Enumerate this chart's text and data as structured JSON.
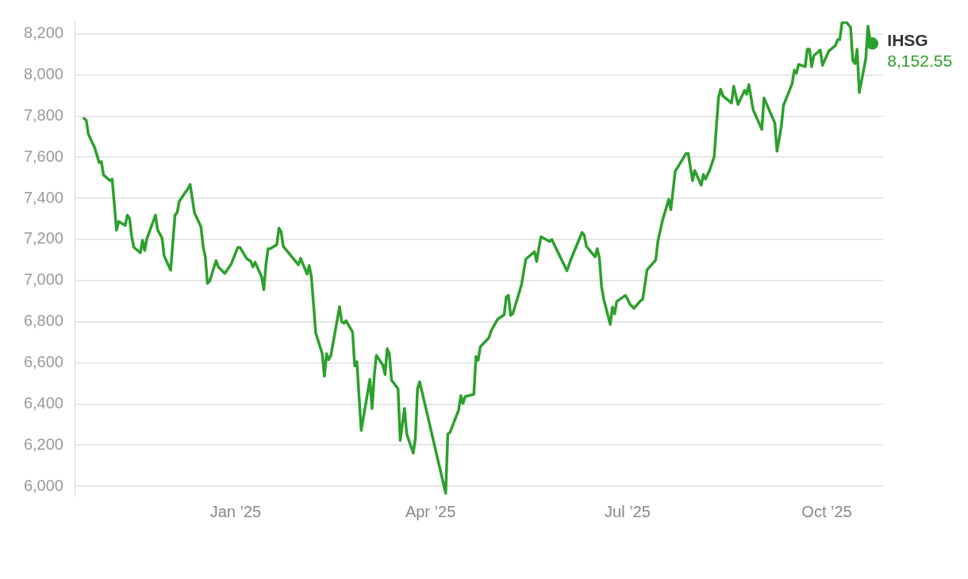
{
  "chart_data": {
    "type": "line",
    "xlim": [
      "2024-10-19",
      "2025-10-27"
    ],
    "ylim": [
      5950,
      8260
    ],
    "xticks": [
      {
        "value": "2025-01-01",
        "label": "Jan ’25"
      },
      {
        "value": "2025-04-01",
        "label": "Apr ’25"
      },
      {
        "value": "2025-07-01",
        "label": "Jul ’25"
      },
      {
        "value": "2025-10-01",
        "label": "Oct ’25"
      }
    ],
    "yticks": [
      {
        "value": 6000,
        "label": "6,000"
      },
      {
        "value": 6200,
        "label": "6,200"
      },
      {
        "value": 6400,
        "label": "6,400"
      },
      {
        "value": 6600,
        "label": "6,600"
      },
      {
        "value": 6800,
        "label": "6,800"
      },
      {
        "value": 7000,
        "label": "7,000"
      },
      {
        "value": 7200,
        "label": "7,200"
      },
      {
        "value": 7400,
        "label": "7,400"
      },
      {
        "value": 7600,
        "label": "7,600"
      },
      {
        "value": 7800,
        "label": "7,800"
      },
      {
        "value": 8000,
        "label": "8,000"
      },
      {
        "value": 8200,
        "label": "8,200"
      }
    ],
    "grid": "y",
    "legend": false,
    "x": [
      "2024-10-23",
      "2024-10-24",
      "2024-10-25",
      "2024-10-28",
      "2024-10-30",
      "2024-10-31",
      "2024-11-01",
      "2024-11-04",
      "2024-11-05",
      "2024-11-07",
      "2024-11-08",
      "2024-11-11",
      "2024-11-12",
      "2024-11-13",
      "2024-11-14",
      "2024-11-15",
      "2024-11-18",
      "2024-11-19",
      "2024-11-20",
      "2024-11-21",
      "2024-11-25",
      "2024-11-26",
      "2024-11-28",
      "2024-11-29",
      "2024-12-02",
      "2024-12-04",
      "2024-12-05",
      "2024-12-06",
      "2024-12-10",
      "2024-12-11",
      "2024-12-13",
      "2024-12-16",
      "2024-12-17",
      "2024-12-18",
      "2024-12-19",
      "2024-12-20",
      "2024-12-23",
      "2024-12-24",
      "2024-12-27",
      "2024-12-30",
      "2025-01-02",
      "2025-01-03",
      "2025-01-06",
      "2025-01-08",
      "2025-01-09",
      "2025-01-10",
      "2025-01-13",
      "2025-01-14",
      "2025-01-15",
      "2025-01-16",
      "2025-01-17",
      "2025-01-20",
      "2025-01-21",
      "2025-01-22",
      "2025-01-23",
      "2025-01-30",
      "2025-01-31",
      "2025-02-03",
      "2025-02-04",
      "2025-02-05",
      "2025-02-07",
      "2025-02-10",
      "2025-02-11",
      "2025-02-12",
      "2025-02-13",
      "2025-02-14",
      "2025-02-18",
      "2025-02-19",
      "2025-02-20",
      "2025-02-21",
      "2025-02-24",
      "2025-02-25",
      "2025-02-26",
      "2025-02-28",
      "2025-03-04",
      "2025-03-05",
      "2025-03-06",
      "2025-03-07",
      "2025-03-10",
      "2025-03-11",
      "2025-03-12",
      "2025-03-13",
      "2025-03-14",
      "2025-03-17",
      "2025-03-18",
      "2025-03-20",
      "2025-03-21",
      "2025-03-24",
      "2025-03-25",
      "2025-03-26",
      "2025-03-27",
      "2025-04-08",
      "2025-04-09",
      "2025-04-10",
      "2025-04-14",
      "2025-04-15",
      "2025-04-16",
      "2025-04-17",
      "2025-04-21",
      "2025-04-22",
      "2025-04-23",
      "2025-04-24",
      "2025-04-28",
      "2025-04-29",
      "2025-05-02",
      "2025-05-05",
      "2025-05-06",
      "2025-05-07",
      "2025-05-08",
      "2025-05-09",
      "2025-05-13",
      "2025-05-15",
      "2025-05-19",
      "2025-05-20",
      "2025-05-21",
      "2025-05-22",
      "2025-05-26",
      "2025-05-27",
      "2025-06-03",
      "2025-06-05",
      "2025-06-10",
      "2025-06-11",
      "2025-06-12",
      "2025-06-16",
      "2025-06-17",
      "2025-06-18",
      "2025-06-19",
      "2025-06-20",
      "2025-06-23",
      "2025-06-24",
      "2025-06-25",
      "2025-06-26",
      "2025-06-30",
      "2025-07-01",
      "2025-07-02",
      "2025-07-04",
      "2025-07-07",
      "2025-07-08",
      "2025-07-10",
      "2025-07-14",
      "2025-07-15",
      "2025-07-17",
      "2025-07-20",
      "2025-07-21",
      "2025-07-23",
      "2025-07-24",
      "2025-07-28",
      "2025-07-29",
      "2025-07-31",
      "2025-08-01",
      "2025-08-04",
      "2025-08-05",
      "2025-08-06",
      "2025-08-08",
      "2025-08-10",
      "2025-08-12",
      "2025-08-13",
      "2025-08-14",
      "2025-08-18",
      "2025-08-19",
      "2025-08-21",
      "2025-08-24",
      "2025-08-25",
      "2025-08-26",
      "2025-08-28",
      "2025-09-01",
      "2025-09-02",
      "2025-09-07",
      "2025-09-08",
      "2025-09-10",
      "2025-09-11",
      "2025-09-15",
      "2025-09-16",
      "2025-09-17",
      "2025-09-18",
      "2025-09-21",
      "2025-09-22",
      "2025-09-23",
      "2025-09-24",
      "2025-09-25",
      "2025-09-28",
      "2025-09-29",
      "2025-10-02",
      "2025-10-05",
      "2025-10-06",
      "2025-10-07",
      "2025-10-08",
      "2025-10-10",
      "2025-10-12",
      "2025-10-13",
      "2025-10-14",
      "2025-10-15",
      "2025-10-16",
      "2025-10-19",
      "2025-10-20",
      "2025-10-21",
      "2025-10-22"
    ],
    "series": [
      {
        "name": "IHSG",
        "color": "#2ca02c",
        "values": [
          7788,
          7780,
          7712,
          7643,
          7574,
          7578,
          7513,
          7486,
          7493,
          7245,
          7287,
          7268,
          7318,
          7303,
          7215,
          7162,
          7135,
          7196,
          7146,
          7203,
          7318,
          7246,
          7208,
          7120,
          7050,
          7318,
          7330,
          7386,
          7447,
          7467,
          7330,
          7261,
          7165,
          7116,
          6986,
          6997,
          7097,
          7066,
          7035,
          7081,
          7161,
          7161,
          7108,
          7093,
          7066,
          7089,
          7018,
          6955,
          7077,
          7155,
          7155,
          7174,
          7255,
          7238,
          7166,
          7077,
          7108,
          7031,
          7073,
          7018,
          6745,
          6644,
          6535,
          6644,
          6615,
          6636,
          6873,
          6800,
          6792,
          6805,
          6750,
          6585,
          6605,
          6271,
          6520,
          6378,
          6535,
          6636,
          6589,
          6543,
          6669,
          6644,
          6516,
          6474,
          6223,
          6378,
          6254,
          6161,
          6231,
          6474,
          6508,
          5966,
          6254,
          6262,
          6371,
          6441,
          6402,
          6436,
          6447,
          6631,
          6612,
          6678,
          6722,
          6756,
          6812,
          6834,
          6921,
          6928,
          6831,
          6839,
          6979,
          7104,
          7140,
          7093,
          7155,
          7213,
          7190,
          7200,
          7047,
          7108,
          7234,
          7220,
          7166,
          7115,
          7155,
          7108,
          6970,
          6909,
          6787,
          6871,
          6838,
          6898,
          6928,
          6909,
          6886,
          6865,
          6902,
          6909,
          7052,
          7100,
          7190,
          7287,
          7395,
          7345,
          7532,
          7548,
          7618,
          7618,
          7486,
          7535,
          7463,
          7516,
          7493,
          7540,
          7602,
          7891,
          7930,
          7898,
          7863,
          7945,
          7856,
          7925,
          7906,
          7953,
          7830,
          7735,
          7888,
          7766,
          7629,
          7750,
          7852,
          7958,
          8023,
          8008,
          8051,
          8040,
          8125,
          8125,
          8040,
          8093,
          8121,
          8047,
          8117,
          8143,
          8171,
          8171,
          8252,
          8257,
          8231,
          8070,
          8055,
          8125,
          7914,
          8078,
          8237,
          8171,
          8152.55
        ],
        "value_labels": [
          null,
          null,
          null,
          null,
          null,
          null,
          null,
          null,
          null,
          null,
          null,
          null,
          null,
          null,
          null,
          null,
          null,
          null,
          null,
          null,
          null,
          null,
          null,
          null,
          null,
          null,
          null,
          null,
          null,
          null,
          null,
          null,
          null,
          null,
          null,
          null,
          null,
          null,
          null,
          null,
          null,
          null,
          null,
          null,
          null,
          null,
          null,
          null,
          null,
          null,
          null,
          null,
          null,
          null,
          null,
          null,
          null,
          null,
          null,
          null,
          null,
          null,
          null,
          null,
          null,
          null,
          null,
          null,
          null,
          null,
          null,
          null,
          null,
          null,
          null,
          null,
          null,
          null,
          null,
          null,
          null,
          null,
          null,
          null,
          null,
          null,
          null,
          null,
          null,
          null,
          null,
          null,
          null,
          null,
          null,
          null,
          null,
          null,
          null,
          null,
          null,
          null,
          null,
          null,
          null,
          null,
          null,
          null,
          null,
          null,
          null,
          null,
          null,
          null,
          null,
          null,
          null,
          null,
          null,
          null,
          null,
          null,
          null,
          null,
          null,
          null,
          null,
          null,
          null,
          null,
          null,
          null,
          null,
          null,
          null,
          null,
          null,
          null,
          null,
          null,
          null,
          null,
          null,
          null,
          null,
          null,
          null,
          null,
          null,
          null,
          null,
          null,
          null,
          null,
          null,
          null,
          null,
          null,
          null,
          null,
          null,
          null,
          null,
          null,
          null,
          null,
          null,
          null,
          null,
          null,
          null,
          null,
          null,
          null,
          null,
          null,
          null,
          null,
          null,
          null,
          null,
          null,
          null,
          null,
          null,
          null,
          null,
          null,
          null,
          null,
          null,
          null,
          null,
          null,
          null,
          null,
          "8,152.55"
        ]
      }
    ]
  }
}
